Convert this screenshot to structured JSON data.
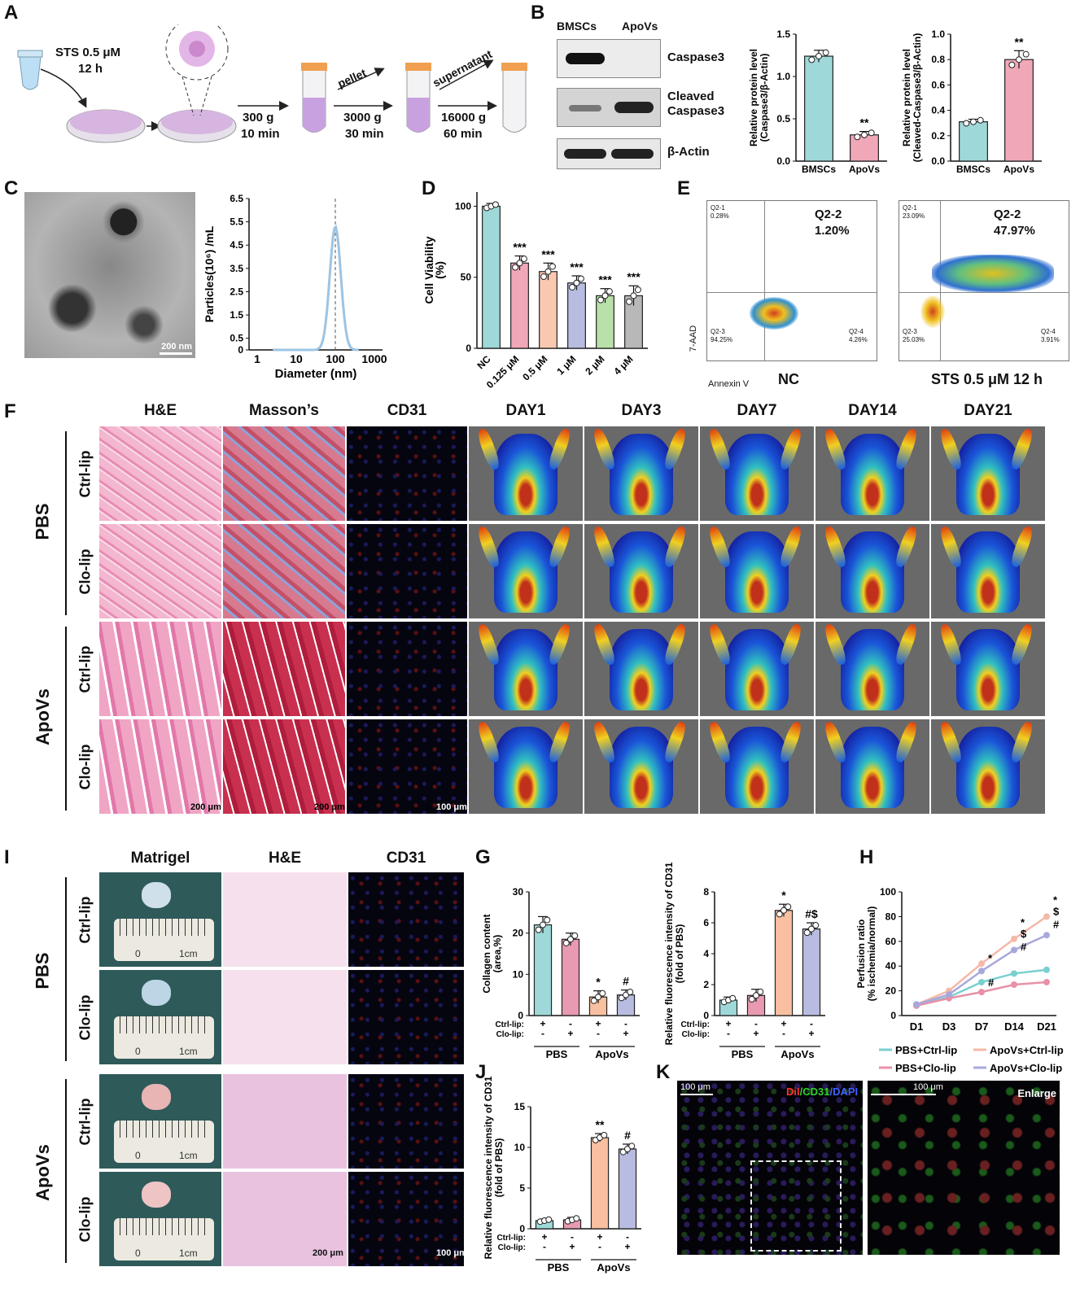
{
  "panels": {
    "A": {
      "label": "A",
      "sts": "STS 0.5 μM",
      "time": "12 h",
      "steps": [
        {
          "g": "300 g",
          "t": "10 min",
          "tag": ""
        },
        {
          "g": "3000 g",
          "t": "30 min",
          "tag": "pellet"
        },
        {
          "g": "16000 g",
          "t": "60 min",
          "tag": "supernatant"
        }
      ]
    },
    "B": {
      "label": "B",
      "cols": [
        "BMSCs",
        "ApoVs"
      ],
      "bands": [
        "Caspase3",
        "Cleaved Caspase3",
        "β-Actin"
      ]
    },
    "C": {
      "label": "C",
      "scale": "200 nm",
      "ylabel": "Particles(10⁶) /mL",
      "xlabel": "Diameter (nm)"
    },
    "D": {
      "label": "D"
    },
    "E": {
      "label": "E",
      "nc": {
        "title": "NC",
        "q22": "Q2-2",
        "val": "1.20%",
        "q21": "Q2-1",
        "q21v": "0.28%",
        "q23": "Q2-3",
        "q23v": "94.25%",
        "q24": "Q2-4",
        "q24v": "4.26%"
      },
      "sts": {
        "title": "STS 0.5 μM 12 h",
        "q22": "Q2-2",
        "val": "47.97%",
        "q21": "Q2-1",
        "q21v": "23.09%",
        "q23": "Q2-3",
        "q23v": "25.03%",
        "q24": "Q2-4",
        "q24v": "3.91%"
      },
      "yaxis": "7-AAD",
      "xaxis": "Annexin V"
    },
    "F": {
      "label": "F",
      "cols": [
        "H&E",
        "Masson’s",
        "CD31",
        "DAY1",
        "DAY3",
        "DAY7",
        "DAY14",
        "DAY21"
      ],
      "groups": [
        "PBS",
        "ApoVs"
      ],
      "rows": [
        "Ctrl-lip",
        "Clo-lip",
        "Ctrl-lip",
        "Clo-lip"
      ],
      "scales": [
        "200 μm",
        "200 μm",
        "100 μm"
      ]
    },
    "I": {
      "label": "I",
      "cols": [
        "Matrigel",
        "H&E",
        "CD31"
      ],
      "groups": [
        "PBS",
        "ApoVs"
      ],
      "rows": [
        "Ctrl-lip",
        "Clo-lip",
        "Ctrl-lip",
        "Clo-lip"
      ],
      "ruler": {
        "zero": "0",
        "cm": "1cm"
      },
      "scales": [
        "200 μm",
        "100 μm"
      ]
    },
    "G": {
      "label": "G"
    },
    "H": {
      "label": "H"
    },
    "J": {
      "label": "J"
    },
    "K": {
      "label": "K",
      "scale1": "100 μm",
      "scale2": "100 μm",
      "stain_dil": "DiI",
      "stain_cd31": "/CD31",
      "stain_dapi": "/DAPI",
      "enlarge": "Enlarge"
    }
  },
  "chart_data": [
    {
      "id": "B1",
      "type": "bar",
      "categories": [
        "BMSCs",
        "ApoVs"
      ],
      "values": [
        1.24,
        0.31
      ],
      "errors": [
        0.07,
        0.04
      ],
      "ylabel": "Relative protein level (Caspase3/β-Actin)",
      "ylim": [
        0,
        1.5
      ],
      "yticks": [
        "0.0",
        "0.5",
        "1.0",
        "1.5"
      ],
      "sig": [
        "",
        "**"
      ],
      "colors": [
        "#9fd8d8",
        "#f0a8b8"
      ]
    },
    {
      "id": "B2",
      "type": "bar",
      "categories": [
        "BMSCs",
        "ApoVs"
      ],
      "values": [
        0.31,
        0.8
      ],
      "errors": [
        0.02,
        0.07
      ],
      "ylabel": "Relative protein level (Cleaved-Caspase3/β-Actin)",
      "ylim": [
        0,
        1.0
      ],
      "yticks": [
        "0.0",
        "0.2",
        "0.4",
        "0.6",
        "0.8",
        "1.0"
      ],
      "sig": [
        "",
        "**"
      ],
      "colors": [
        "#9fd8d8",
        "#f0a8b8"
      ]
    },
    {
      "id": "C",
      "type": "line",
      "x": [
        1,
        10,
        100,
        1000
      ],
      "xticks": [
        "1",
        "10",
        "100",
        "1000"
      ],
      "yticks": [
        "0",
        "0.5",
        "1.5",
        "2.5",
        "3.5",
        "4.5",
        "5.5",
        "6.5"
      ],
      "ylim": [
        0,
        6.5
      ],
      "peak": {
        "x": 100,
        "y": 5.3
      },
      "xlabel": "Diameter (nm)",
      "ylabel": "Particles(10⁶) /mL"
    },
    {
      "id": "D",
      "type": "bar",
      "categories": [
        "NC",
        "0.125 μM",
        "0.5 μM",
        "1 μM",
        "2 μM",
        "4 μM"
      ],
      "values": [
        100,
        60,
        54,
        46,
        37,
        37
      ],
      "errors": [
        2,
        5,
        6,
        5,
        5,
        7
      ],
      "ylabel": "Cell Viability (%)",
      "ylim": [
        0,
        110
      ],
      "yticks": [
        "0",
        "50",
        "100"
      ],
      "sig": [
        "",
        "***",
        "***",
        "***",
        "***",
        "***"
      ],
      "colors": [
        "#9fd8d8",
        "#f0a8b8",
        "#f8c8b0",
        "#b8bce0",
        "#b8e0a8",
        "#b8b8b8"
      ]
    },
    {
      "id": "G1",
      "type": "bar",
      "categories": [
        "1",
        "2",
        "3",
        "4"
      ],
      "values": [
        22,
        18.5,
        4.5,
        5
      ],
      "errors": [
        2,
        1.5,
        1.5,
        1.2
      ],
      "ylabel": "Collagen content (area,%)",
      "ylim": [
        0,
        30
      ],
      "yticks": [
        "0",
        "10",
        "20",
        "30"
      ],
      "sig": [
        "",
        "",
        "*",
        "#"
      ],
      "rowlabels": [
        "Ctrl-lip:",
        "Clo-lip:"
      ],
      "signs": [
        [
          "+",
          "-",
          "+",
          "-"
        ],
        [
          "-",
          "+",
          "-",
          "+"
        ]
      ],
      "groups": [
        "PBS",
        "ApoVs"
      ],
      "colors": [
        "#9fd8d8",
        "#e89ab0",
        "#f8c0a0",
        "#b8bce0"
      ]
    },
    {
      "id": "G2",
      "type": "bar",
      "categories": [
        "1",
        "2",
        "3",
        "4"
      ],
      "values": [
        1,
        1.3,
        6.8,
        5.6
      ],
      "errors": [
        0.2,
        0.4,
        0.4,
        0.4
      ],
      "ylabel": "Relative fluorescence intensity of CD31 (fold of PBS)",
      "ylim": [
        0,
        8
      ],
      "yticks": [
        "0",
        "2",
        "4",
        "6",
        "8"
      ],
      "sig": [
        "",
        "",
        "*",
        "#$"
      ],
      "rowlabels": [
        "Ctrl-lip:",
        "Clo-lip:"
      ],
      "signs": [
        [
          "+",
          "-",
          "+",
          "-"
        ],
        [
          "-",
          "+",
          "-",
          "+"
        ]
      ],
      "groups": [
        "PBS",
        "ApoVs"
      ],
      "colors": [
        "#9fd8d8",
        "#e89ab0",
        "#f8c0a0",
        "#b8bce0"
      ]
    },
    {
      "id": "H",
      "type": "line",
      "categories": [
        "D1",
        "D3",
        "D7",
        "D14",
        "D21"
      ],
      "series": [
        {
          "name": "PBS+Ctrl-lip",
          "values": [
            8,
            15,
            27,
            34,
            37
          ],
          "color": "#7ad0d0"
        },
        {
          "name": "PBS+Clo-lip",
          "values": [
            8,
            14,
            19,
            25,
            27
          ],
          "color": "#e891a8"
        },
        {
          "name": "ApoVs+Ctrl-lip",
          "values": [
            9,
            20,
            42,
            62,
            80
          ],
          "color": "#f5b8a8"
        },
        {
          "name": "ApoVs+Clo-lip",
          "values": [
            9,
            17,
            36,
            53,
            65
          ],
          "color": "#a8a8dc"
        }
      ],
      "ylabel": "Perfusion ratio (% ischemia/normal)",
      "ylim": [
        0,
        100
      ],
      "yticks": [
        "0",
        "20",
        "40",
        "60",
        "80",
        "100"
      ],
      "annotations": [
        {
          "x": 2,
          "text": "*"
        },
        {
          "x": 2,
          "text": "#"
        },
        {
          "x": 3,
          "text": "$"
        },
        {
          "x": 3,
          "text": "*"
        },
        {
          "x": 3,
          "text": "#"
        },
        {
          "x": 4,
          "text": "$"
        },
        {
          "x": 4,
          "text": "*"
        },
        {
          "x": 4,
          "text": "#"
        }
      ]
    },
    {
      "id": "J",
      "type": "bar",
      "categories": [
        "1",
        "2",
        "3",
        "4"
      ],
      "values": [
        1,
        1.1,
        11.2,
        9.8
      ],
      "errors": [
        0.2,
        0.3,
        0.5,
        0.6
      ],
      "ylabel": "Relative fluorescence intensity of CD31 (fold of PBS)",
      "ylim": [
        0,
        15
      ],
      "yticks": [
        "0",
        "5",
        "10",
        "15"
      ],
      "sig": [
        "",
        "",
        "**",
        "#"
      ],
      "rowlabels": [
        "Ctrl-lip:",
        "Clo-lip:"
      ],
      "signs": [
        [
          "+",
          "-",
          "+",
          "-"
        ],
        [
          "-",
          "+",
          "-",
          "+"
        ]
      ],
      "groups": [
        "PBS",
        "ApoVs"
      ],
      "colors": [
        "#9fd8d8",
        "#e89ab0",
        "#f8c0a0",
        "#b8bce0"
      ]
    }
  ]
}
